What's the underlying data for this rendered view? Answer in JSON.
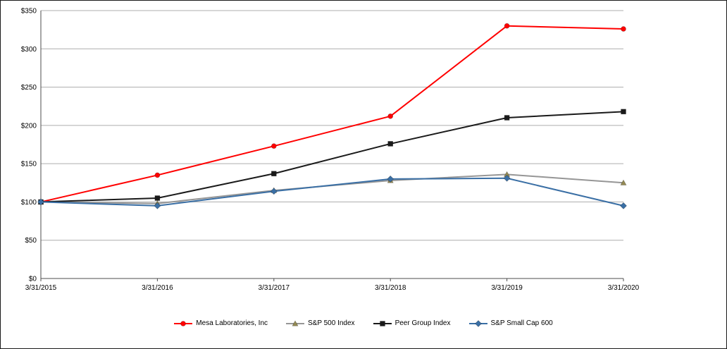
{
  "chart_data": {
    "type": "line",
    "title": "",
    "xlabel": "",
    "ylabel": "",
    "x": [
      "3/31/2015",
      "3/31/2016",
      "3/31/2017",
      "3/31/2018",
      "3/31/2019",
      "3/31/2020"
    ],
    "series": [
      {
        "name": "Mesa Laboratories, Inc",
        "color": "#FF0000",
        "marker": "circle",
        "marker_color": "#FF0000",
        "values": [
          100,
          135,
          173,
          212,
          330,
          326
        ]
      },
      {
        "name": "S&P 500 Index",
        "color": "#969696",
        "marker": "triangle",
        "marker_color": "#948A54",
        "values": [
          100,
          98,
          115,
          128,
          136,
          125
        ]
      },
      {
        "name": "Peer Group Index",
        "color": "#1A1A1A",
        "marker": "square",
        "marker_color": "#1A1A1A",
        "values": [
          100,
          105,
          137,
          176,
          210,
          218
        ]
      },
      {
        "name": "S&P Small Cap 600",
        "color": "#3A6FA5",
        "marker": "diamond",
        "marker_color": "#3A6FA5",
        "values": [
          100,
          95,
          114,
          130,
          131,
          95
        ]
      }
    ],
    "ylim": [
      0,
      350
    ],
    "ytick_step": 50,
    "ytick_labels": [
      "$0",
      "$50",
      "$100",
      "$150",
      "$200",
      "$250",
      "$300",
      "$350"
    ],
    "grid": true,
    "legend_position": "bottom",
    "axis_color": "#4D4D4D",
    "grid_color": "#ADADAD",
    "label_color": "#000000",
    "background_color": "#FFFFFF"
  }
}
